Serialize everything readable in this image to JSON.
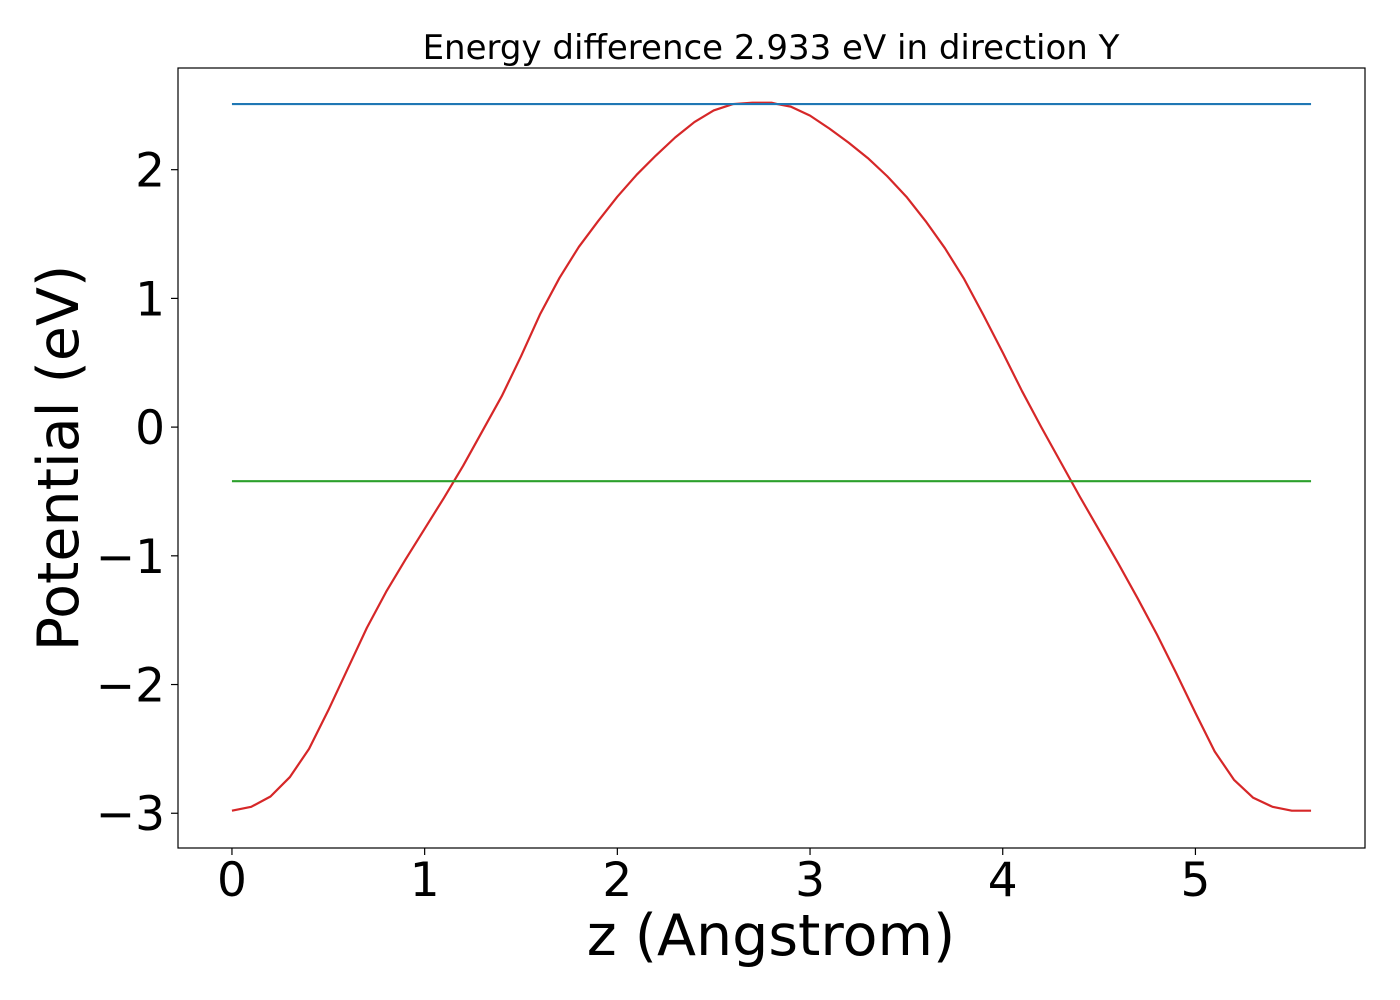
{
  "chart_data": {
    "type": "line",
    "title": "Energy difference 2.933 eV in direction Y",
    "xlabel": "z (Angstrom)",
    "ylabel": "Potential (eV)",
    "xlim": [
      -0.28,
      5.88
    ],
    "ylim": [
      -3.27,
      2.79
    ],
    "xticks": [
      0,
      1,
      2,
      3,
      4,
      5
    ],
    "xtick_labels": [
      "0",
      "1",
      "2",
      "3",
      "4",
      "5"
    ],
    "yticks": [
      -3,
      -2,
      -1,
      0,
      1,
      2
    ],
    "ytick_labels": [
      "−3",
      "−2",
      "−1",
      "0",
      "1",
      "2"
    ],
    "grid": false,
    "series": [
      {
        "color": "#d62728",
        "x": [
          0.0,
          0.1,
          0.2,
          0.3,
          0.4,
          0.5,
          0.6,
          0.7,
          0.8,
          0.9,
          1.0,
          1.1,
          1.2,
          1.3,
          1.4,
          1.5,
          1.6,
          1.7,
          1.8,
          1.9,
          2.0,
          2.1,
          2.2,
          2.3,
          2.4,
          2.5,
          2.6,
          2.7,
          2.8,
          2.83,
          2.9,
          3.0,
          3.1,
          3.2,
          3.3,
          3.4,
          3.5,
          3.6,
          3.7,
          3.8,
          3.9,
          4.0,
          4.1,
          4.2,
          4.3,
          4.4,
          4.5,
          4.6,
          4.7,
          4.8,
          4.9,
          5.0,
          5.1,
          5.2,
          5.3,
          5.4,
          5.5,
          5.6
        ],
        "y": [
          -2.98,
          -2.95,
          -2.87,
          -2.72,
          -2.5,
          -2.2,
          -1.88,
          -1.56,
          -1.28,
          -1.03,
          -0.79,
          -0.55,
          -0.3,
          -0.03,
          0.24,
          0.55,
          0.88,
          1.16,
          1.4,
          1.6,
          1.79,
          1.96,
          2.11,
          2.25,
          2.37,
          2.46,
          2.51,
          2.52,
          2.52,
          2.51,
          2.49,
          2.42,
          2.32,
          2.21,
          2.09,
          1.95,
          1.79,
          1.6,
          1.39,
          1.15,
          0.87,
          0.58,
          0.28,
          0.0,
          -0.27,
          -0.54,
          -0.8,
          -1.06,
          -1.33,
          -1.61,
          -1.91,
          -2.22,
          -2.52,
          -2.74,
          -2.88,
          -2.95,
          -2.98,
          -2.98
        ]
      },
      {
        "color": "#1f77b4",
        "x": [
          0.0,
          5.6
        ],
        "y": [
          2.51,
          2.51
        ]
      },
      {
        "color": "#2ca02c",
        "x": [
          0.0,
          5.6
        ],
        "y": [
          -0.42,
          -0.42
        ]
      }
    ]
  }
}
